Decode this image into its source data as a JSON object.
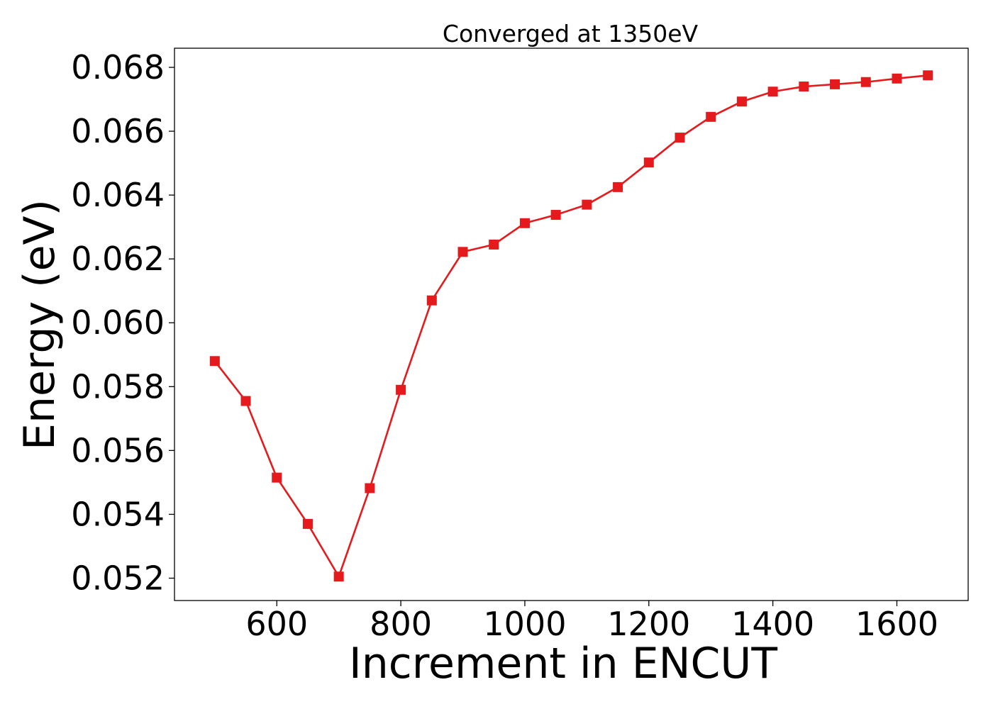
{
  "chart_data": {
    "type": "line",
    "title": "Converged at 1350eV",
    "xlabel": "Increment in ENCUT",
    "ylabel": "Energy (eV)",
    "xlim": [
      435,
      1715
    ],
    "ylim": [
      0.0513,
      0.0686
    ],
    "x_ticks": [
      600,
      800,
      1000,
      1200,
      1400,
      1600
    ],
    "x_tick_labels": [
      "600",
      "800",
      "1000",
      "1200",
      "1400",
      "1600"
    ],
    "y_ticks": [
      0.052,
      0.054,
      0.056,
      0.058,
      0.06,
      0.062,
      0.064,
      0.066,
      0.068
    ],
    "y_tick_labels": [
      "0.052",
      "0.054",
      "0.056",
      "0.058",
      "0.060",
      "0.062",
      "0.064",
      "0.066",
      "0.068"
    ],
    "grid": false,
    "series": [
      {
        "color": "#e41a1c",
        "marker": "square",
        "x": [
          500,
          550,
          600,
          650,
          700,
          750,
          800,
          850,
          900,
          950,
          1000,
          1050,
          1100,
          1150,
          1200,
          1250,
          1300,
          1350,
          1400,
          1450,
          1500,
          1550,
          1600,
          1650
        ],
        "y": [
          0.0588,
          0.05755,
          0.05515,
          0.0537,
          0.05205,
          0.05482,
          0.0579,
          0.0607,
          0.06222,
          0.06245,
          0.06312,
          0.06338,
          0.0637,
          0.06425,
          0.06502,
          0.0658,
          0.06645,
          0.06693,
          0.06724,
          0.0674,
          0.06747,
          0.06754,
          0.06765,
          0.06775
        ]
      }
    ]
  }
}
